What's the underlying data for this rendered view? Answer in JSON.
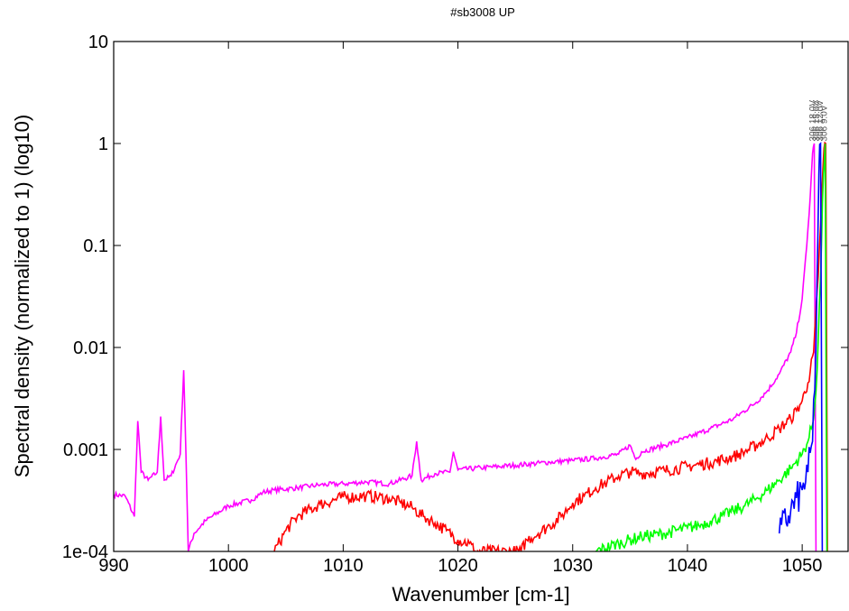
{
  "chart_data": {
    "type": "line",
    "title": "#sb3008 UP",
    "xlabel": "Wavenumber [cm-1]",
    "ylabel": "Spectral density (normalized to 1) (log10)",
    "xlim": [
      990,
      1054
    ],
    "ylim": [
      0.0001,
      10
    ],
    "yscale": "log",
    "grid": false,
    "x_ticks": [
      990,
      1000,
      1010,
      1020,
      1030,
      1040,
      1050
    ],
    "x_tick_labels": [
      "990",
      "1000",
      "1010",
      "1020",
      "1030",
      "1040",
      "1050"
    ],
    "y_ticks": [
      0.0001,
      0.001,
      0.01,
      0.1,
      1,
      10
    ],
    "y_tick_labels": [
      "1e-04",
      "0.001",
      "0.01",
      "0.1",
      "1",
      "10"
    ],
    "peak_labels": [
      "306 18.0V",
      "306 15.0V",
      "306 12.0V",
      "306 9.0V"
    ],
    "series": [
      {
        "color": "#ff00ff",
        "x": [
          990,
          991,
          991.8,
          992.1,
          992.4,
          993,
          993.8,
          994.1,
          994.4,
          995,
          995.8,
          996.1,
          996.3,
          996.5,
          997,
          998,
          1000,
          1002,
          1003,
          1004,
          1006,
          1008,
          1010,
          1012,
          1014,
          1016,
          1016.4,
          1016.8,
          1018,
          1019.3,
          1019.6,
          1020,
          1022,
          1025,
          1028,
          1030,
          1032,
          1034,
          1035,
          1035.5,
          1036,
          1038,
          1040,
          1042,
          1044,
          1046,
          1047,
          1048,
          1049,
          1049.5,
          1050,
          1050.4,
          1050.7,
          1050.9,
          1051.05,
          1051.2
        ],
        "y": [
          0.00036,
          0.00035,
          0.00022,
          0.0019,
          0.0006,
          0.0005,
          0.0006,
          0.0021,
          0.0005,
          0.00055,
          0.0009,
          0.006,
          0.0009,
          0.0001,
          0.00015,
          0.0002,
          0.00028,
          0.00032,
          0.00038,
          0.0004,
          0.00042,
          0.00045,
          0.00046,
          0.00048,
          0.00046,
          0.00055,
          0.0012,
          0.0005,
          0.00058,
          0.0006,
          0.00095,
          0.00063,
          0.00066,
          0.0007,
          0.00075,
          0.00078,
          0.00082,
          0.0009,
          0.0011,
          0.0008,
          0.00095,
          0.0011,
          0.0013,
          0.0016,
          0.002,
          0.0029,
          0.0038,
          0.0055,
          0.009,
          0.014,
          0.03,
          0.1,
          0.3,
          0.8,
          1.0,
          0.0001
        ]
      },
      {
        "color": "#ff0000",
        "x": [
          1004,
          1005,
          1006,
          1008,
          1010,
          1012,
          1014,
          1015,
          1016,
          1017,
          1018,
          1019,
          1020,
          1021,
          1021.5,
          1025.5,
          1026,
          1027,
          1028,
          1029,
          1030,
          1031,
          1032,
          1033,
          1034,
          1035,
          1036,
          1038,
          1040,
          1042,
          1044,
          1045,
          1046,
          1047,
          1048,
          1049,
          1049.5,
          1050,
          1050.5,
          1051,
          1051.4,
          1051.7,
          1051.9,
          1052.05,
          1052.2
        ],
        "y": [
          0.0001,
          0.00016,
          0.00022,
          0.00029,
          0.00034,
          0.00035,
          0.00033,
          0.0003,
          0.00027,
          0.00022,
          0.00019,
          0.00016,
          0.00013,
          0.00012,
          0.0001,
          0.0001,
          0.00013,
          0.00015,
          0.00018,
          0.00022,
          0.0003,
          0.00035,
          0.00042,
          0.00048,
          0.00055,
          0.0006,
          0.00058,
          0.00062,
          0.00068,
          0.00074,
          0.00085,
          0.00095,
          0.0011,
          0.0013,
          0.0016,
          0.002,
          0.0024,
          0.003,
          0.0045,
          0.009,
          0.05,
          0.3,
          0.9,
          1.0,
          0.0001
        ]
      },
      {
        "color": "#00ff00",
        "x": [
          1032,
          1034,
          1036,
          1038,
          1040,
          1041,
          1042,
          1043,
          1044,
          1045,
          1046,
          1047,
          1048,
          1049,
          1050,
          1050.5,
          1051,
          1051.3,
          1051.6,
          1051.85,
          1052.0,
          1052.15
        ],
        "y": [
          0.0001,
          0.00012,
          0.00014,
          0.00015,
          0.00017,
          0.00018,
          0.0002,
          0.00022,
          0.00025,
          0.00028,
          0.00033,
          0.0004,
          0.0005,
          0.00065,
          0.0009,
          0.0012,
          0.002,
          0.006,
          0.05,
          0.5,
          1.0,
          0.0001
        ]
      },
      {
        "color": "#0000ff",
        "x": [
          1048,
          1049,
          1050,
          1050.5,
          1050.9,
          1051.2,
          1051.45,
          1051.6,
          1051.75
        ],
        "y": [
          0.00015,
          0.00025,
          0.0004,
          0.0006,
          0.0012,
          0.01,
          0.5,
          1.0,
          0.0001
        ]
      }
    ]
  }
}
